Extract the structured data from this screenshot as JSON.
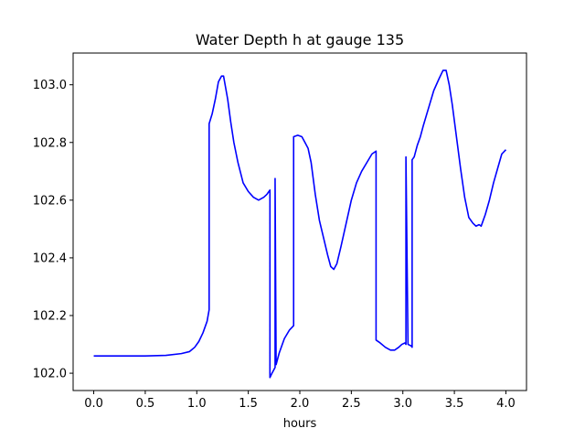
{
  "chart_data": {
    "type": "line",
    "title": "Water Depth h at gauge 135",
    "xlabel": "hours",
    "ylabel": "",
    "xlim": [
      -0.2,
      4.2
    ],
    "ylim": [
      101.94,
      103.11
    ],
    "xticks": [
      0.0,
      0.5,
      1.0,
      1.5,
      2.0,
      2.5,
      3.0,
      3.5,
      4.0
    ],
    "xtick_labels": [
      "0.0",
      "0.5",
      "1.0",
      "1.5",
      "2.0",
      "2.5",
      "3.0",
      "3.5",
      "4.0"
    ],
    "yticks": [
      102.0,
      102.2,
      102.4,
      102.6,
      102.8,
      103.0
    ],
    "ytick_labels": [
      "102.0",
      "102.2",
      "102.4",
      "102.6",
      "102.8",
      "103.0"
    ],
    "grid": false,
    "legend": "none",
    "series": [
      {
        "color": "#0000ff",
        "x": [
          0.0,
          0.5,
          0.7,
          0.85,
          0.93,
          0.98,
          1.02,
          1.06,
          1.1,
          1.12,
          1.12,
          1.15,
          1.18,
          1.21,
          1.24,
          1.26,
          1.28,
          1.3,
          1.33,
          1.36,
          1.4,
          1.45,
          1.5,
          1.55,
          1.6,
          1.65,
          1.68,
          1.7,
          1.71,
          1.71,
          1.73,
          1.76,
          1.76,
          1.77,
          1.8,
          1.85,
          1.9,
          1.94,
          1.94,
          1.98,
          2.02,
          2.05,
          2.08,
          2.11,
          2.15,
          2.19,
          2.23,
          2.27,
          2.3,
          2.33,
          2.36,
          2.4,
          2.45,
          2.5,
          2.55,
          2.6,
          2.65,
          2.7,
          2.74,
          2.74,
          2.78,
          2.83,
          2.88,
          2.92,
          2.96,
          2.99,
          3.02,
          3.03,
          3.03,
          3.05,
          3.08,
          3.09,
          3.09,
          3.11,
          3.14,
          3.17,
          3.2,
          3.25,
          3.3,
          3.35,
          3.39,
          3.42,
          3.45,
          3.48,
          3.52,
          3.56,
          3.6,
          3.64,
          3.68,
          3.71,
          3.74,
          3.76,
          3.78,
          3.8,
          3.84,
          3.88,
          3.92,
          3.96,
          4.0
        ],
        "y": [
          102.06,
          102.06,
          102.062,
          102.068,
          102.075,
          102.09,
          102.11,
          102.14,
          102.18,
          102.22,
          102.865,
          102.9,
          102.95,
          103.01,
          103.03,
          103.03,
          102.99,
          102.95,
          102.87,
          102.8,
          102.73,
          102.66,
          102.63,
          102.61,
          102.6,
          102.61,
          102.62,
          102.63,
          102.635,
          101.985,
          102.0,
          102.02,
          102.675,
          102.03,
          102.07,
          102.12,
          102.15,
          102.165,
          102.82,
          102.825,
          102.82,
          102.8,
          102.78,
          102.73,
          102.62,
          102.53,
          102.47,
          102.41,
          102.37,
          102.36,
          102.38,
          102.44,
          102.52,
          102.6,
          102.66,
          102.7,
          102.73,
          102.76,
          102.77,
          102.115,
          102.105,
          102.09,
          102.08,
          102.08,
          102.09,
          102.1,
          102.105,
          102.1,
          102.75,
          102.1,
          102.095,
          102.09,
          102.74,
          102.75,
          102.79,
          102.82,
          102.86,
          102.92,
          102.98,
          103.02,
          103.05,
          103.05,
          103.0,
          102.93,
          102.82,
          102.71,
          102.61,
          102.54,
          102.52,
          102.51,
          102.515,
          102.51,
          102.53,
          102.55,
          102.6,
          102.66,
          102.71,
          102.76,
          102.775
        ]
      }
    ]
  }
}
